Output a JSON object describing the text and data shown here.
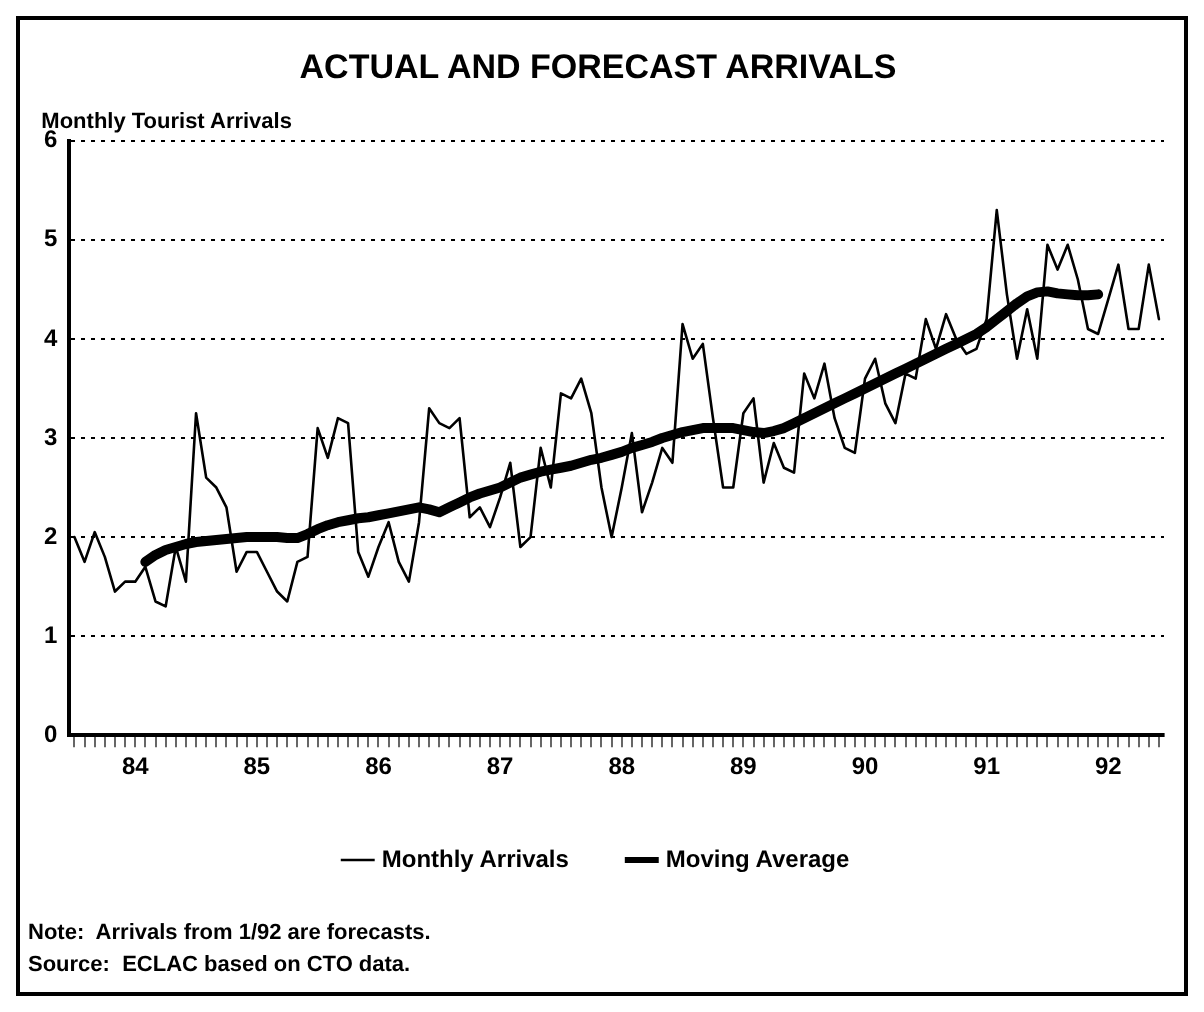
{
  "chart_data": {
    "type": "line",
    "title": "ACTUAL AND FORECAST ARRIVALS",
    "ylabel": "Monthly Tourist Arrivals",
    "categories": [
      null,
      null,
      null,
      null,
      null,
      null,
      "84",
      null,
      null,
      null,
      null,
      null,
      null,
      null,
      null,
      null,
      null,
      null,
      "85",
      null,
      null,
      null,
      null,
      null,
      null,
      null,
      null,
      null,
      null,
      null,
      "86",
      null,
      null,
      null,
      null,
      null,
      null,
      null,
      null,
      null,
      null,
      null,
      "87",
      null,
      null,
      null,
      null,
      null,
      null,
      null,
      null,
      null,
      null,
      null,
      "88",
      null,
      null,
      null,
      null,
      null,
      null,
      null,
      null,
      null,
      null,
      null,
      "89",
      null,
      null,
      null,
      null,
      null,
      null,
      null,
      null,
      null,
      null,
      null,
      "90",
      null,
      null,
      null,
      null,
      null,
      null,
      null,
      null,
      null,
      null,
      null,
      "91",
      null,
      null,
      null,
      null,
      null,
      null,
      null,
      null,
      null,
      null,
      null,
      "92",
      null,
      null,
      null,
      null,
      null
    ],
    "series": [
      {
        "name": "Monthly Arrivals",
        "color": "#000000",
        "values": [
          2.0,
          1.75,
          2.05,
          1.8,
          1.45,
          1.55,
          1.55,
          1.7,
          1.35,
          1.3,
          1.9,
          1.55,
          3.25,
          2.6,
          2.5,
          2.3,
          1.65,
          1.85,
          1.85,
          1.65,
          1.45,
          1.35,
          1.75,
          1.8,
          3.1,
          2.8,
          3.2,
          3.15,
          1.85,
          1.6,
          1.9,
          2.15,
          1.75,
          1.55,
          2.15,
          3.3,
          3.15,
          3.1,
          3.2,
          2.2,
          2.3,
          2.1,
          2.4,
          2.75,
          1.9,
          2.0,
          2.9,
          2.5,
          3.45,
          3.4,
          3.6,
          3.25,
          2.5,
          2.0,
          2.5,
          3.05,
          2.25,
          2.55,
          2.9,
          2.75,
          4.15,
          3.8,
          3.95,
          3.2,
          2.5,
          2.5,
          3.25,
          3.4,
          2.55,
          2.95,
          2.7,
          2.65,
          3.65,
          3.4,
          3.75,
          3.2,
          2.9,
          2.85,
          3.6,
          3.8,
          3.35,
          3.15,
          3.65,
          3.6,
          4.2,
          3.9,
          4.25,
          4.0,
          3.85,
          3.9,
          4.2,
          5.3,
          4.45,
          3.8,
          4.3,
          3.8,
          4.95,
          4.7,
          4.95,
          4.6,
          4.1,
          4.05,
          4.4,
          4.75,
          4.1,
          4.1,
          4.75,
          4.2
        ]
      },
      {
        "name": "Moving Average",
        "color": "#000000",
        "values": [
          null,
          null,
          null,
          null,
          null,
          null,
          null,
          1.75,
          1.82,
          1.87,
          1.9,
          1.93,
          1.95,
          1.96,
          1.97,
          1.98,
          1.99,
          2.0,
          2.0,
          2.0,
          2.0,
          1.99,
          1.99,
          2.03,
          2.08,
          2.12,
          2.15,
          2.17,
          2.19,
          2.2,
          2.22,
          2.24,
          2.26,
          2.28,
          2.3,
          2.28,
          2.25,
          2.3,
          2.35,
          2.4,
          2.44,
          2.47,
          2.5,
          2.55,
          2.6,
          2.63,
          2.66,
          2.68,
          2.7,
          2.72,
          2.75,
          2.78,
          2.8,
          2.83,
          2.86,
          2.9,
          2.93,
          2.96,
          3.0,
          3.03,
          3.06,
          3.08,
          3.1,
          3.1,
          3.1,
          3.1,
          3.08,
          3.06,
          3.05,
          3.07,
          3.1,
          3.15,
          3.2,
          3.25,
          3.3,
          3.35,
          3.4,
          3.45,
          3.5,
          3.55,
          3.6,
          3.65,
          3.7,
          3.75,
          3.8,
          3.85,
          3.9,
          3.95,
          4.0,
          4.05,
          4.12,
          4.2,
          4.28,
          4.36,
          4.43,
          4.47,
          4.48,
          4.46,
          4.45,
          4.44,
          4.44,
          4.45,
          null,
          null,
          null,
          null,
          null,
          null
        ]
      }
    ],
    "ylim": [
      0,
      6
    ],
    "yticks": [
      0,
      1,
      2,
      3,
      4,
      5,
      6
    ],
    "grid": "y",
    "legend": "bottom",
    "marker": "none",
    "annotations": [
      "Note:  Arrivals from 1/92 are forecasts.",
      "Source:  ECLAC based on CTO data."
    ]
  }
}
